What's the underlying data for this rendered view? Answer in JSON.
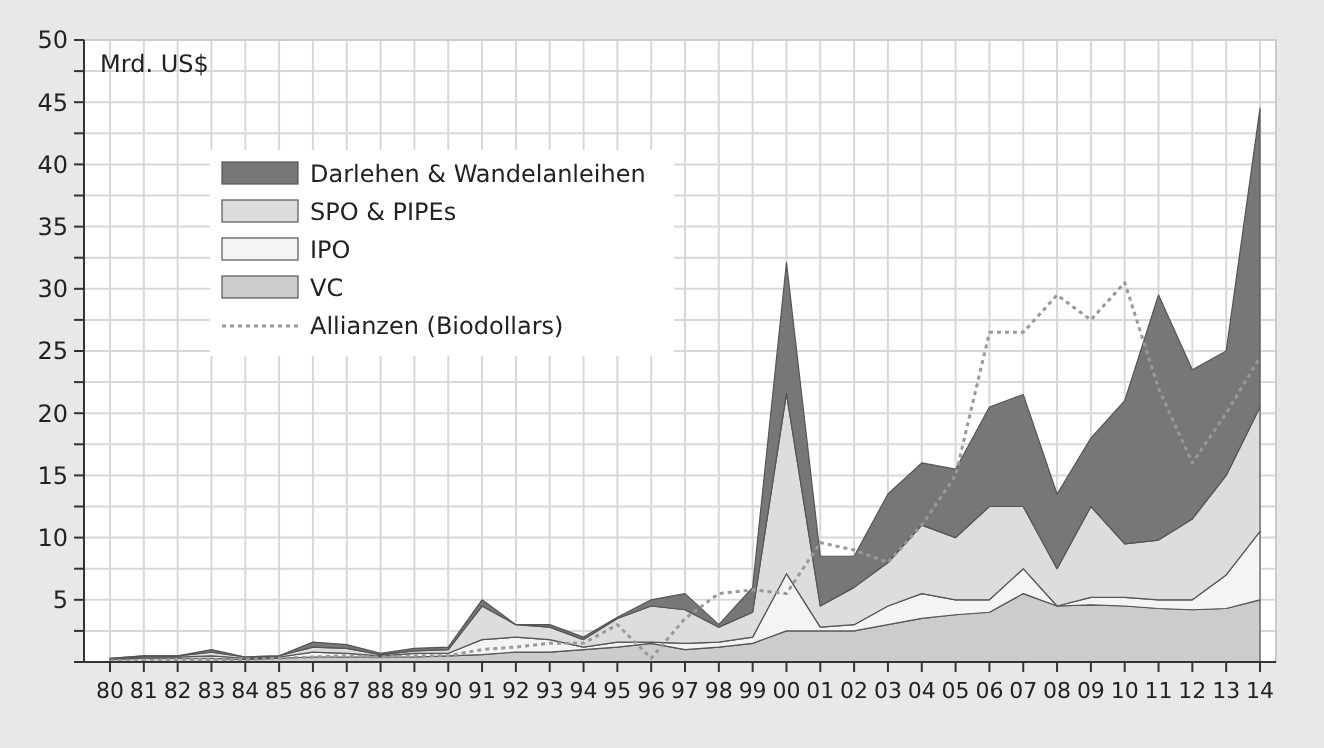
{
  "chart_data": {
    "type": "area",
    "stacked": true,
    "ylabel": "Mrd. US$",
    "legend": "top left",
    "grid": true,
    "line_style": "dotted",
    "categories": [
      "80",
      "81",
      "82",
      "83",
      "84",
      "85",
      "86",
      "87",
      "88",
      "89",
      "90",
      "91",
      "92",
      "93",
      "94",
      "95",
      "96",
      "97",
      "98",
      "99",
      "00",
      "01",
      "02",
      "03",
      "04",
      "05",
      "06",
      "07",
      "08",
      "09",
      "10",
      "11",
      "12",
      "13",
      "14"
    ],
    "ylim": [
      0,
      50
    ],
    "yticks": [
      {
        "value": 0,
        "label": null
      },
      {
        "value": 2.5,
        "label": null
      },
      5,
      {
        "value": 7.5,
        "label": null
      },
      10,
      {
        "value": 12.5,
        "label": null
      },
      15,
      {
        "value": 17.5,
        "label": null
      },
      20,
      {
        "value": 22.5,
        "label": null
      },
      25,
      {
        "value": 27.5,
        "label": null
      },
      30,
      {
        "value": 32.5,
        "label": null
      },
      35,
      {
        "value": 37.5,
        "label": null
      },
      40,
      {
        "value": 42.5,
        "label": null
      },
      45,
      {
        "value": 47.5,
        "label": null
      },
      50
    ],
    "series": [
      {
        "name": "VC",
        "color": "#cccccc",
        "values": [
          0.2,
          0.3,
          0.3,
          0.3,
          0.2,
          0.3,
          0.4,
          0.4,
          0.4,
          0.4,
          0.5,
          0.6,
          0.8,
          0.8,
          1.0,
          1.2,
          1.5,
          1.0,
          1.2,
          1.5,
          2.5,
          2.5,
          2.5,
          3.0,
          3.5,
          3.8,
          4.0,
          5.5,
          4.5,
          4.6,
          4.5,
          4.3,
          4.2,
          4.3,
          5.0
        ]
      },
      {
        "name": "IPO",
        "color": "#f4f4f4",
        "values": [
          0,
          0.1,
          0.1,
          0.2,
          0.1,
          0.1,
          0.4,
          0.3,
          0.1,
          0.3,
          0.2,
          1.2,
          1.2,
          1.0,
          0.2,
          0.4,
          0.1,
          0.5,
          0.4,
          0.5,
          4.6,
          0.3,
          0.5,
          1.5,
          2.0,
          1.2,
          1.0,
          2.0,
          0,
          0.6,
          0.7,
          0.7,
          0.8,
          2.7,
          5.5
        ]
      },
      {
        "name": "SPO & PIPEs",
        "color": "#dddddd",
        "values": [
          0.1,
          0.1,
          0.1,
          0.3,
          0.1,
          0.1,
          0.4,
          0.4,
          0.1,
          0.2,
          0.3,
          2.7,
          1.0,
          1.0,
          0.6,
          1.9,
          2.9,
          2.7,
          1.2,
          2.0,
          14.5,
          1.7,
          3.0,
          3.5,
          5.5,
          5.0,
          7.5,
          5.0,
          3.0,
          7.3,
          4.3,
          4.8,
          6.5,
          8.0,
          10.0
        ]
      },
      {
        "name": "Darlehen & Wandelanleihen",
        "color": "#777777",
        "values": [
          0,
          0,
          0,
          0.2,
          0,
          0,
          0.4,
          0.3,
          0.1,
          0.2,
          0.2,
          0.5,
          0,
          0.2,
          0.2,
          0.1,
          0.5,
          1.3,
          0.2,
          2.0,
          10.5,
          4.0,
          2.5,
          5.5,
          5.0,
          5.5,
          8.0,
          9.0,
          6.0,
          5.5,
          11.5,
          19.7,
          12.0,
          10.0,
          24.0
        ]
      },
      {
        "name": "Allianzen (Biodollars)",
        "type": "line",
        "color": "#999999",
        "values": [
          0.1,
          0.1,
          0.2,
          0.2,
          0.2,
          0.3,
          0.4,
          0.5,
          0.4,
          0.5,
          0.5,
          1.0,
          1.2,
          1.5,
          1.5,
          3.0,
          0.3,
          3.5,
          5.5,
          5.8,
          5.5,
          9.6,
          9.0,
          8.0,
          11,
          15,
          26.5,
          26.5,
          29.5,
          27.5,
          30.5,
          22,
          16,
          20,
          24.5
        ]
      }
    ]
  }
}
